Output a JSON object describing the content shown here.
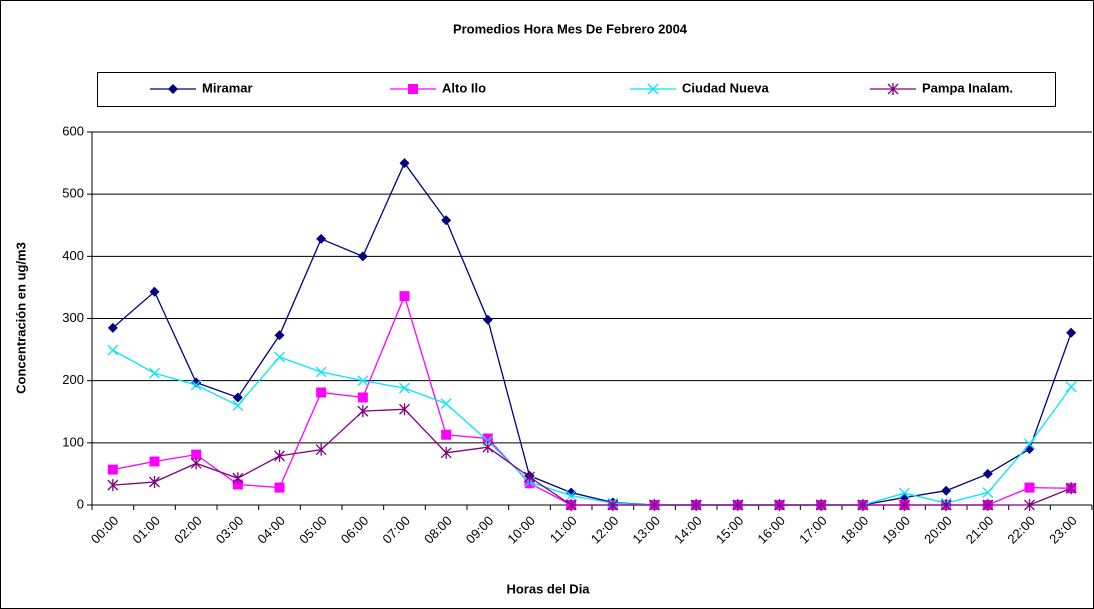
{
  "chart_data": {
    "type": "line",
    "title": "Promedios Hora Mes De Febrero 2004",
    "x_label": "Horas del Dia",
    "y_label": "Concentración en ug/m3",
    "categories": [
      "00:00",
      "01:00",
      "02:00",
      "03:00",
      "04:00",
      "05:00",
      "06:00",
      "07:00",
      "08:00",
      "09:00",
      "10:00",
      "11:00",
      "12:00",
      "13:00",
      "14:00",
      "15:00",
      "16:00",
      "17:00",
      "18:00",
      "19:00",
      "20:00",
      "21:00",
      "22:00",
      "23:00"
    ],
    "series": [
      {
        "name": "Miramar",
        "color": "#000080",
        "marker": "diamond",
        "values": [
          285,
          343,
          197,
          173,
          273,
          428,
          400,
          550,
          458,
          298,
          47,
          20,
          4,
          0,
          0,
          0,
          0,
          0,
          0,
          12,
          23,
          50,
          90,
          277
        ]
      },
      {
        "name": "Alto Ilo",
        "color": "#ff00ff",
        "marker": "square",
        "values": [
          57,
          70,
          81,
          33,
          28,
          181,
          173,
          336,
          113,
          107,
          35,
          0,
          0,
          0,
          0,
          0,
          0,
          0,
          0,
          0,
          0,
          0,
          28,
          27
        ]
      },
      {
        "name": "Ciudad Nueva",
        "color": "#00e5ff",
        "marker": "x",
        "values": [
          249,
          212,
          193,
          160,
          238,
          214,
          200,
          188,
          163,
          103,
          37,
          15,
          3,
          0,
          0,
          0,
          0,
          0,
          0,
          19,
          3,
          20,
          98,
          190
        ]
      },
      {
        "name": "Pampa Inalam.",
        "color": "#800080",
        "marker": "star",
        "values": [
          32,
          37,
          67,
          43,
          79,
          89,
          151,
          154,
          84,
          93,
          45,
          0,
          0,
          0,
          0,
          0,
          0,
          0,
          0,
          0,
          0,
          0,
          0,
          27
        ]
      }
    ],
    "ylim": [
      0,
      600
    ],
    "yticks": [
      0,
      100,
      200,
      300,
      400,
      500,
      600
    ],
    "grid": true,
    "legend": "top"
  }
}
